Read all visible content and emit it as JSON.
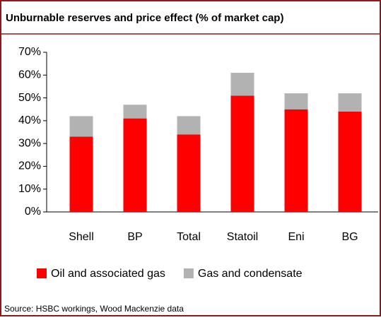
{
  "chart_data": {
    "type": "stacked_bar",
    "title": "Unburnable reserves and price effect (% of market cap)",
    "source": "Source: HSBC workings, Wood Mackenzie data",
    "categories": [
      "Shell",
      "BP",
      "Total",
      "Statoil",
      "Eni",
      "BG"
    ],
    "series": [
      {
        "name": "Oil and associated gas",
        "color": "#ff0000",
        "values": [
          33,
          41,
          34,
          51,
          45,
          44
        ]
      },
      {
        "name": "Gas and condensate",
        "color": "#b2b2b2",
        "values": [
          9,
          6,
          8,
          10,
          7,
          8
        ]
      }
    ],
    "ylim": [
      0,
      70
    ],
    "yticks": [
      {
        "value": 0,
        "label": "0%"
      },
      {
        "value": 10,
        "label": "10%"
      },
      {
        "value": 20,
        "label": "20%"
      },
      {
        "value": 30,
        "label": "30%"
      },
      {
        "value": 40,
        "label": "40%"
      },
      {
        "value": 50,
        "label": "50%"
      },
      {
        "value": 60,
        "label": "60%"
      },
      {
        "value": 70,
        "label": "70%"
      }
    ],
    "grid": false
  }
}
